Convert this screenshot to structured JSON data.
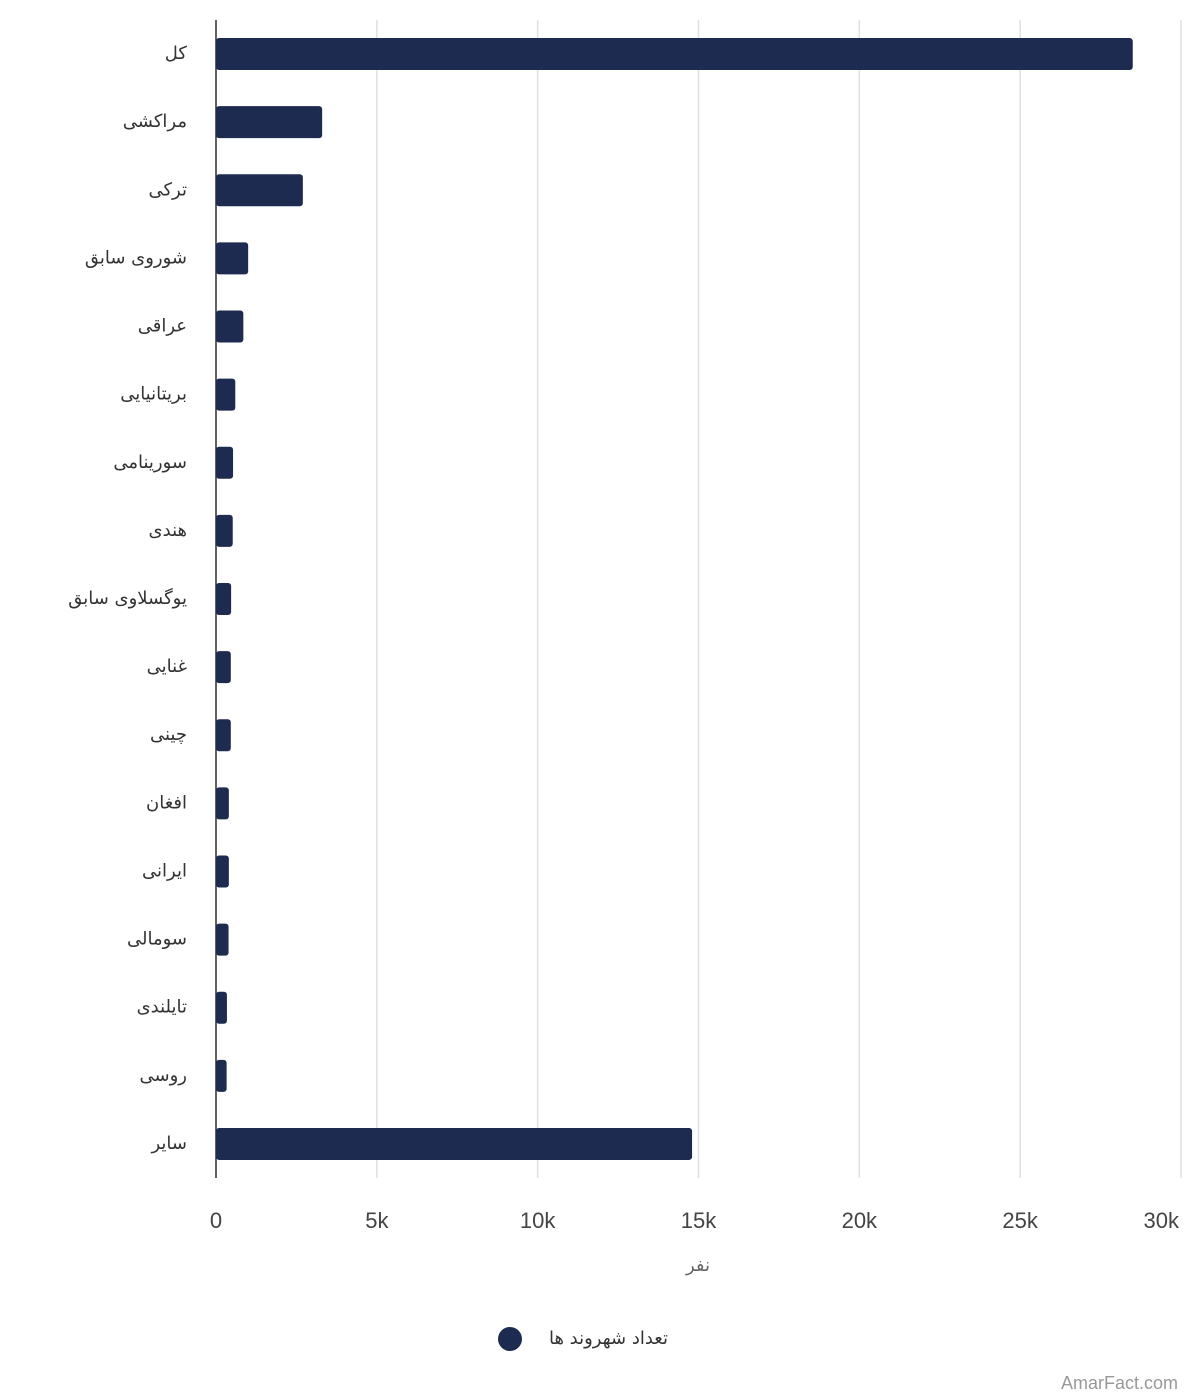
{
  "chart_data": {
    "type": "bar",
    "orientation": "horizontal",
    "x_label": "نفر",
    "categories": [
      "کل",
      "مراکشی",
      "ترکی",
      "شوروی سابق",
      "عراقی",
      "بریتانیایی",
      "سورینامی",
      "هندی",
      "یوگسلاوی سابق",
      "غنایی",
      "چینی",
      "افغان",
      "ایرانی",
      "سومالی",
      "تایلندی",
      "روسی",
      "سایر"
    ],
    "series": [
      {
        "name": "تعداد شهروند ها",
        "color": "#1c2b4f",
        "values": [
          28500,
          3300,
          2700,
          1000,
          850,
          600,
          530,
          520,
          470,
          460,
          460,
          400,
          400,
          390,
          340,
          330,
          14800
        ]
      }
    ],
    "xlim": [
      0,
      30000
    ],
    "xticks": [
      0,
      {
        "value": 5000,
        "label": "5k"
      },
      {
        "value": 10000,
        "label": "10k"
      },
      {
        "value": 15000,
        "label": "15k"
      },
      {
        "value": 20000,
        "label": "20k"
      },
      {
        "value": 25000,
        "label": "25k"
      },
      {
        "value": 30000,
        "label": "30k"
      }
    ],
    "grid": true,
    "legend": "bottom",
    "watermark": "AmarFact.com"
  }
}
